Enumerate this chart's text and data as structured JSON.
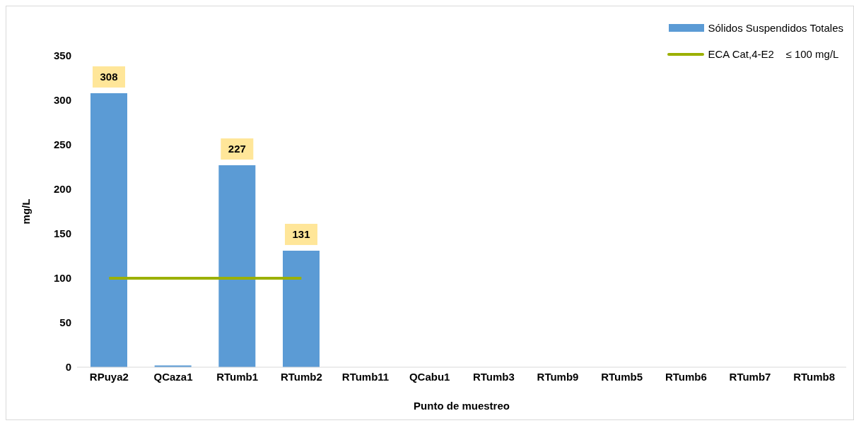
{
  "chart_data": {
    "type": "bar",
    "xlabel": "Punto de muestreo",
    "ylabel": "mg/L",
    "categories": [
      "RPuya2",
      "QCaza1",
      "RTumb1",
      "RTumb2",
      "RTumb11",
      "QCabu1",
      "RTumb3",
      "RTumb9",
      "RTumb5",
      "RTumb6",
      "RTumb7",
      "RTumb8"
    ],
    "series": [
      {
        "name": "Sólidos Suspendidos Totales",
        "color": "#5b9bd5",
        "values": [
          308,
          2,
          227,
          131,
          null,
          null,
          null,
          null,
          null,
          null,
          null,
          null
        ],
        "value_labels": [
          "308",
          null,
          "227",
          "131",
          null,
          null,
          null,
          null,
          null,
          null,
          null,
          null
        ]
      },
      {
        "type": "line",
        "name": "ECA Cat,4-E2    ≤ 100 mg/L",
        "color": "#9bb000",
        "values": [
          100,
          100,
          100,
          100,
          null,
          null,
          null,
          null,
          null,
          null,
          null,
          null
        ]
      }
    ],
    "ylim": [
      0,
      350
    ],
    "yticks": [
      0,
      50,
      100,
      150,
      200,
      250,
      300,
      350
    ],
    "grid": false,
    "legend": "top right",
    "marker": "none",
    "line_style": "solid"
  }
}
